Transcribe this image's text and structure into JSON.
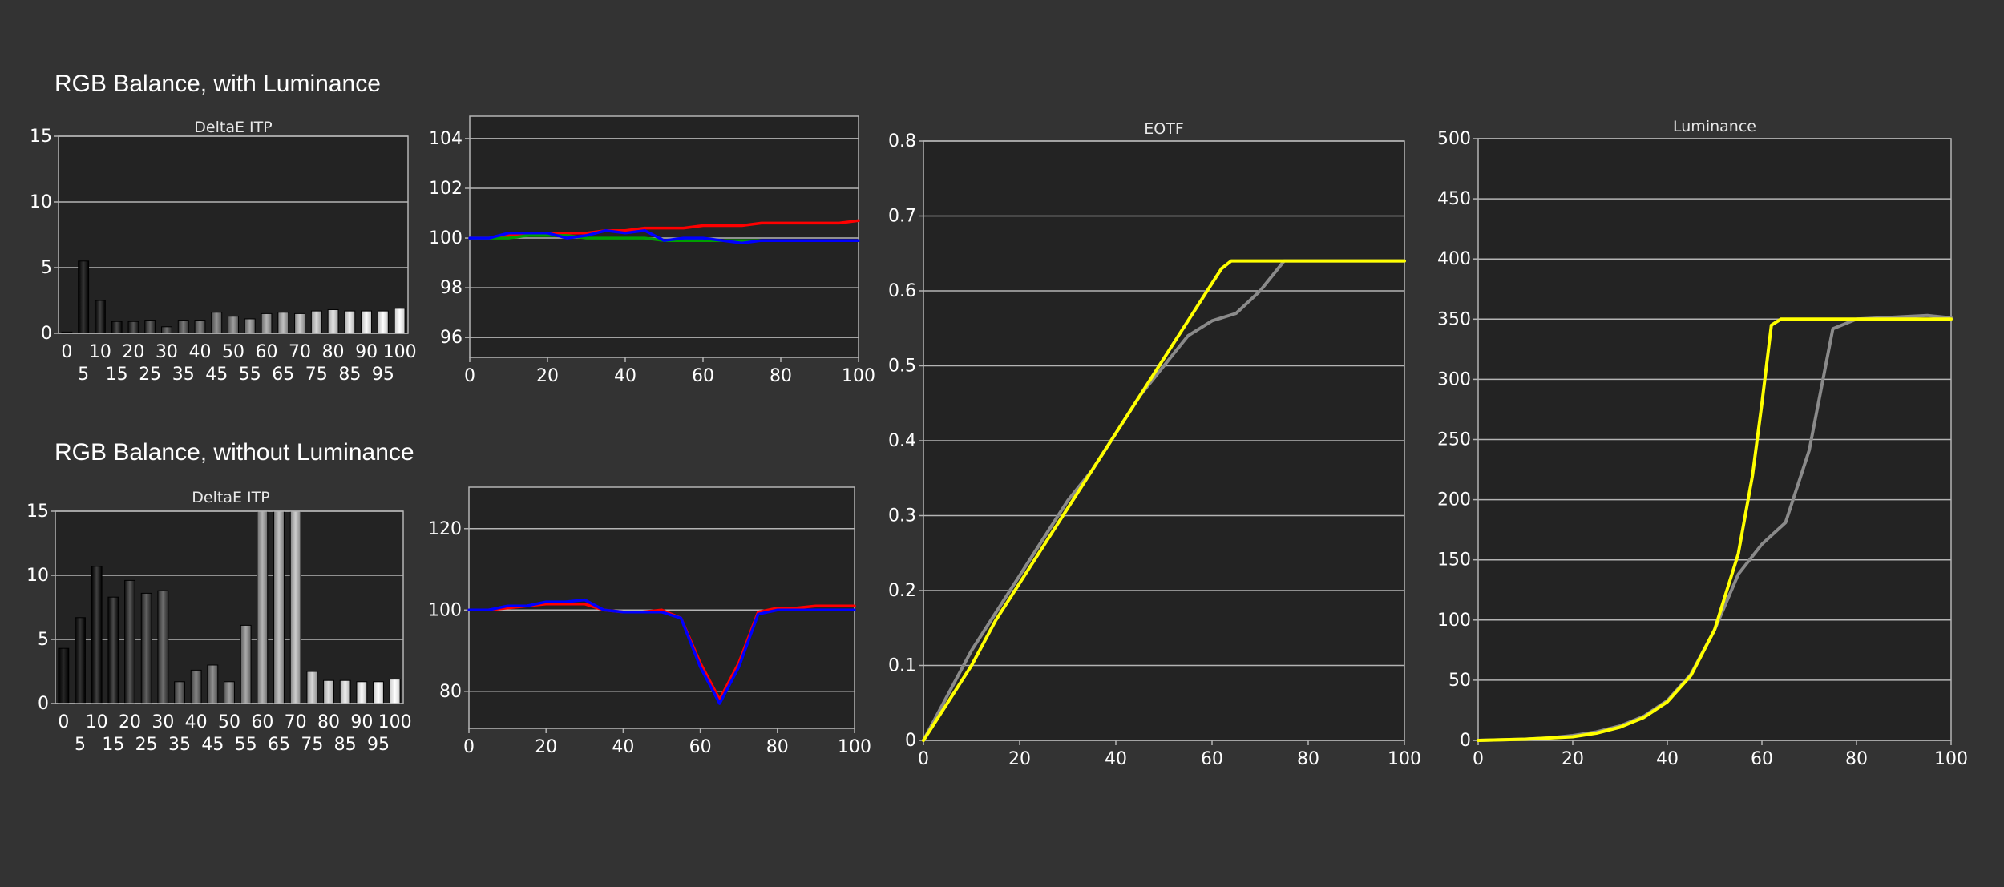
{
  "sections": {
    "with_luminance": "RGB Balance, with Luminance",
    "without_luminance": "RGB Balance, without Luminance"
  },
  "chart_titles": {
    "deltae_top": "DeltaE ITP",
    "deltae_bottom": "DeltaE ITP",
    "eotf": "EOTF",
    "luminance": "Luminance"
  },
  "colors": {
    "background": "#333333",
    "plot_background": "#232323",
    "gridline": "#b4b4b4",
    "red": "#ff0000",
    "green": "#00a000",
    "blue": "#0000ff",
    "yellow": "#ffff00",
    "gray": "#8a8a8a"
  },
  "chart_data": [
    {
      "id": "deltae_top",
      "type": "bar",
      "title": "DeltaE ITP",
      "categories": [
        "0",
        "5",
        "10",
        "15",
        "20",
        "25",
        "30",
        "35",
        "40",
        "45",
        "50",
        "55",
        "60",
        "65",
        "70",
        "75",
        "80",
        "85",
        "90",
        "95",
        "100"
      ],
      "values": [
        0.1,
        5.5,
        2.5,
        0.9,
        0.9,
        1.0,
        0.5,
        1.0,
        1.0,
        1.6,
        1.3,
        1.1,
        1.5,
        1.6,
        1.5,
        1.7,
        1.8,
        1.7,
        1.7,
        1.7,
        1.9
      ],
      "ylim": [
        0,
        15
      ],
      "yticks": [
        0,
        5,
        10,
        15
      ],
      "grid": true
    },
    {
      "id": "rgb_top",
      "type": "line",
      "xlim": [
        0,
        100
      ],
      "ylim": [
        95,
        105
      ],
      "xticks": [
        0,
        20,
        40,
        60,
        80,
        100
      ],
      "yticks": [
        96,
        98,
        100,
        102,
        104
      ],
      "grid": true,
      "series": [
        {
          "color": "red",
          "x": [
            0,
            5,
            10,
            15,
            20,
            25,
            30,
            35,
            40,
            45,
            50,
            55,
            60,
            65,
            70,
            75,
            80,
            85,
            90,
            95,
            100
          ],
          "y": [
            100.0,
            100.0,
            100.1,
            100.1,
            100.2,
            100.2,
            100.2,
            100.3,
            100.3,
            100.4,
            100.4,
            100.4,
            100.5,
            100.5,
            100.5,
            100.6,
            100.6,
            100.6,
            100.6,
            100.6,
            100.7
          ]
        },
        {
          "color": "green",
          "x": [
            0,
            5,
            10,
            15,
            20,
            25,
            30,
            35,
            40,
            45,
            50,
            55,
            60,
            65,
            70,
            75,
            80,
            85,
            90,
            95,
            100
          ],
          "y": [
            100.0,
            100.0,
            100.0,
            100.1,
            100.1,
            100.1,
            100.0,
            100.0,
            100.0,
            100.0,
            99.9,
            99.9,
            99.9,
            99.9,
            99.9,
            99.9,
            99.9,
            99.9,
            99.9,
            99.9,
            99.9
          ]
        },
        {
          "color": "blue",
          "x": [
            0,
            5,
            10,
            15,
            20,
            25,
            30,
            35,
            40,
            45,
            50,
            55,
            60,
            65,
            70,
            75,
            80,
            85,
            90,
            95,
            100
          ],
          "y": [
            100.0,
            100.0,
            100.2,
            100.2,
            100.2,
            100.0,
            100.1,
            100.3,
            100.2,
            100.3,
            99.9,
            100.0,
            100.0,
            99.9,
            99.8,
            99.9,
            99.9,
            99.9,
            99.9,
            99.9,
            99.9
          ]
        }
      ]
    },
    {
      "id": "deltae_bottom",
      "type": "bar",
      "title": "DeltaE ITP",
      "categories": [
        "0",
        "5",
        "10",
        "15",
        "20",
        "25",
        "30",
        "35",
        "40",
        "45",
        "50",
        "55",
        "60",
        "65",
        "70",
        "75",
        "80",
        "85",
        "90",
        "95",
        "100"
      ],
      "values": [
        4.3,
        6.7,
        10.7,
        8.3,
        9.6,
        8.6,
        8.8,
        1.7,
        2.6,
        3.0,
        1.7,
        6.1,
        15,
        15,
        15,
        2.5,
        1.8,
        1.8,
        1.7,
        1.7,
        1.9
      ],
      "ylim": [
        0,
        15
      ],
      "yticks": [
        0,
        5,
        10,
        15
      ],
      "grid": true
    },
    {
      "id": "rgb_bottom",
      "type": "line",
      "xlim": [
        0,
        100
      ],
      "ylim": [
        70,
        130
      ],
      "xticks": [
        0,
        20,
        40,
        60,
        80,
        100
      ],
      "yticks": [
        80,
        100,
        120
      ],
      "grid": true,
      "series": [
        {
          "color": "red",
          "x": [
            0,
            5,
            10,
            15,
            20,
            25,
            30,
            35,
            40,
            45,
            50,
            55,
            60,
            65,
            70,
            75,
            80,
            85,
            90,
            95,
            100
          ],
          "y": [
            100,
            100,
            100.5,
            101,
            101.5,
            101.5,
            101.5,
            100,
            99.5,
            99.5,
            100,
            98,
            87,
            78,
            87,
            99.5,
            100.5,
            100.5,
            101,
            101,
            101
          ]
        },
        {
          "color": "blue",
          "x": [
            0,
            5,
            10,
            15,
            20,
            25,
            30,
            35,
            40,
            45,
            50,
            55,
            60,
            65,
            70,
            75,
            80,
            85,
            90,
            95,
            100
          ],
          "y": [
            100,
            100,
            101,
            101,
            102,
            102,
            102.5,
            100,
            99.5,
            99.5,
            99.5,
            98,
            86,
            77,
            86,
            99,
            100,
            100,
            100,
            100,
            100
          ]
        }
      ]
    },
    {
      "id": "eotf",
      "type": "line",
      "title": "EOTF",
      "xlim": [
        0,
        100
      ],
      "ylim": [
        0,
        0.8
      ],
      "xticks": [
        0,
        20,
        40,
        60,
        80,
        100
      ],
      "yticks": [
        0,
        0.1,
        0.2,
        0.3,
        0.4,
        0.5,
        0.6,
        0.7,
        0.8
      ],
      "grid": true,
      "series": [
        {
          "color": "gray",
          "x": [
            0,
            5,
            10,
            15,
            20,
            25,
            30,
            35,
            40,
            45,
            50,
            55,
            60,
            65,
            70,
            75,
            80,
            85,
            90,
            95,
            100
          ],
          "y": [
            0,
            0.06,
            0.12,
            0.17,
            0.22,
            0.27,
            0.32,
            0.36,
            0.41,
            0.46,
            0.5,
            0.54,
            0.56,
            0.57,
            0.6,
            0.64,
            0.64,
            0.64,
            0.64,
            0.64,
            0.64
          ]
        },
        {
          "color": "yellow",
          "x": [
            0,
            5,
            10,
            15,
            20,
            25,
            30,
            35,
            40,
            45,
            50,
            55,
            60,
            62,
            64,
            65,
            70,
            75,
            80,
            85,
            90,
            95,
            100
          ],
          "y": [
            0,
            0.05,
            0.1,
            0.16,
            0.21,
            0.26,
            0.31,
            0.36,
            0.41,
            0.46,
            0.51,
            0.56,
            0.61,
            0.63,
            0.64,
            0.64,
            0.64,
            0.64,
            0.64,
            0.64,
            0.64,
            0.64,
            0.64
          ]
        }
      ]
    },
    {
      "id": "luminance",
      "type": "line",
      "title": "Luminance",
      "xlim": [
        0,
        100
      ],
      "ylim": [
        0,
        500
      ],
      "xticks": [
        0,
        20,
        40,
        60,
        80,
        100
      ],
      "yticks": [
        0,
        50,
        100,
        150,
        200,
        250,
        300,
        350,
        400,
        450,
        500
      ],
      "grid": true,
      "series": [
        {
          "color": "gray",
          "x": [
            0,
            5,
            10,
            15,
            20,
            25,
            30,
            35,
            40,
            45,
            50,
            55,
            60,
            65,
            70,
            75,
            80,
            85,
            90,
            95,
            100
          ],
          "y": [
            0,
            0.5,
            1,
            2,
            4,
            7,
            12,
            20,
            33,
            55,
            92,
            138,
            163,
            181,
            241,
            342,
            350,
            351,
            352,
            353,
            351
          ]
        },
        {
          "color": "yellow",
          "x": [
            0,
            5,
            10,
            15,
            20,
            25,
            30,
            35,
            40,
            45,
            50,
            55,
            58,
            60,
            62,
            64,
            65,
            70,
            75,
            80,
            85,
            90,
            95,
            100
          ],
          "y": [
            0,
            0.5,
            1,
            2,
            3,
            6,
            11,
            19,
            32,
            54,
            92,
            155,
            220,
            280,
            345,
            350,
            350,
            350,
            350,
            350,
            350,
            350,
            350,
            350
          ]
        }
      ]
    }
  ]
}
